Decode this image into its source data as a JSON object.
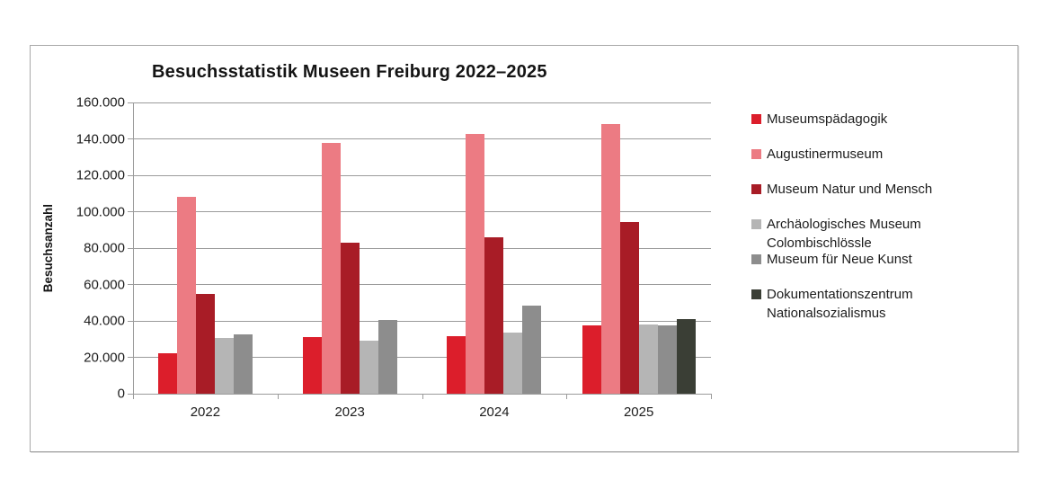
{
  "chart_data": {
    "type": "bar",
    "title": "Besuchsstatistik Museen Freiburg 2022–2025",
    "xlabel": "",
    "ylabel": "Besuchsanzahl",
    "categories": [
      "2022",
      "2023",
      "2024",
      "2025"
    ],
    "series": [
      {
        "name": "Museumspädagogik",
        "color": "#dc1e2b",
        "values": [
          22000,
          31000,
          31500,
          37500
        ]
      },
      {
        "name": "Augustinermuseum",
        "color": "#ec7b83",
        "values": [
          108000,
          138000,
          142500,
          148000
        ]
      },
      {
        "name": "Museum Natur und Mensch",
        "color": "#a81c26",
        "values": [
          55000,
          83000,
          86000,
          94500
        ]
      },
      {
        "name": "Archäologisches Museum Colombischlössle",
        "color": "#b5b5b5",
        "values": [
          30500,
          29000,
          33500,
          38000
        ]
      },
      {
        "name": "Museum für Neue Kunst",
        "color": "#8d8d8d",
        "values": [
          32500,
          40500,
          48500,
          37500
        ]
      },
      {
        "name": "Dokumentationszentrum Nationalsozialismus",
        "color": "#3a3e35",
        "values": [
          null,
          null,
          null,
          41000
        ]
      }
    ],
    "ylim": [
      0,
      160000
    ],
    "ytick_step": 20000,
    "ytick_labels": [
      "0",
      "20.000",
      "40.000",
      "60.000",
      "80.000",
      "100.000",
      "120.000",
      "140.000",
      "160.000"
    ],
    "grid": true,
    "legend_position": "right",
    "axis_color": "#9b9b9b"
  }
}
